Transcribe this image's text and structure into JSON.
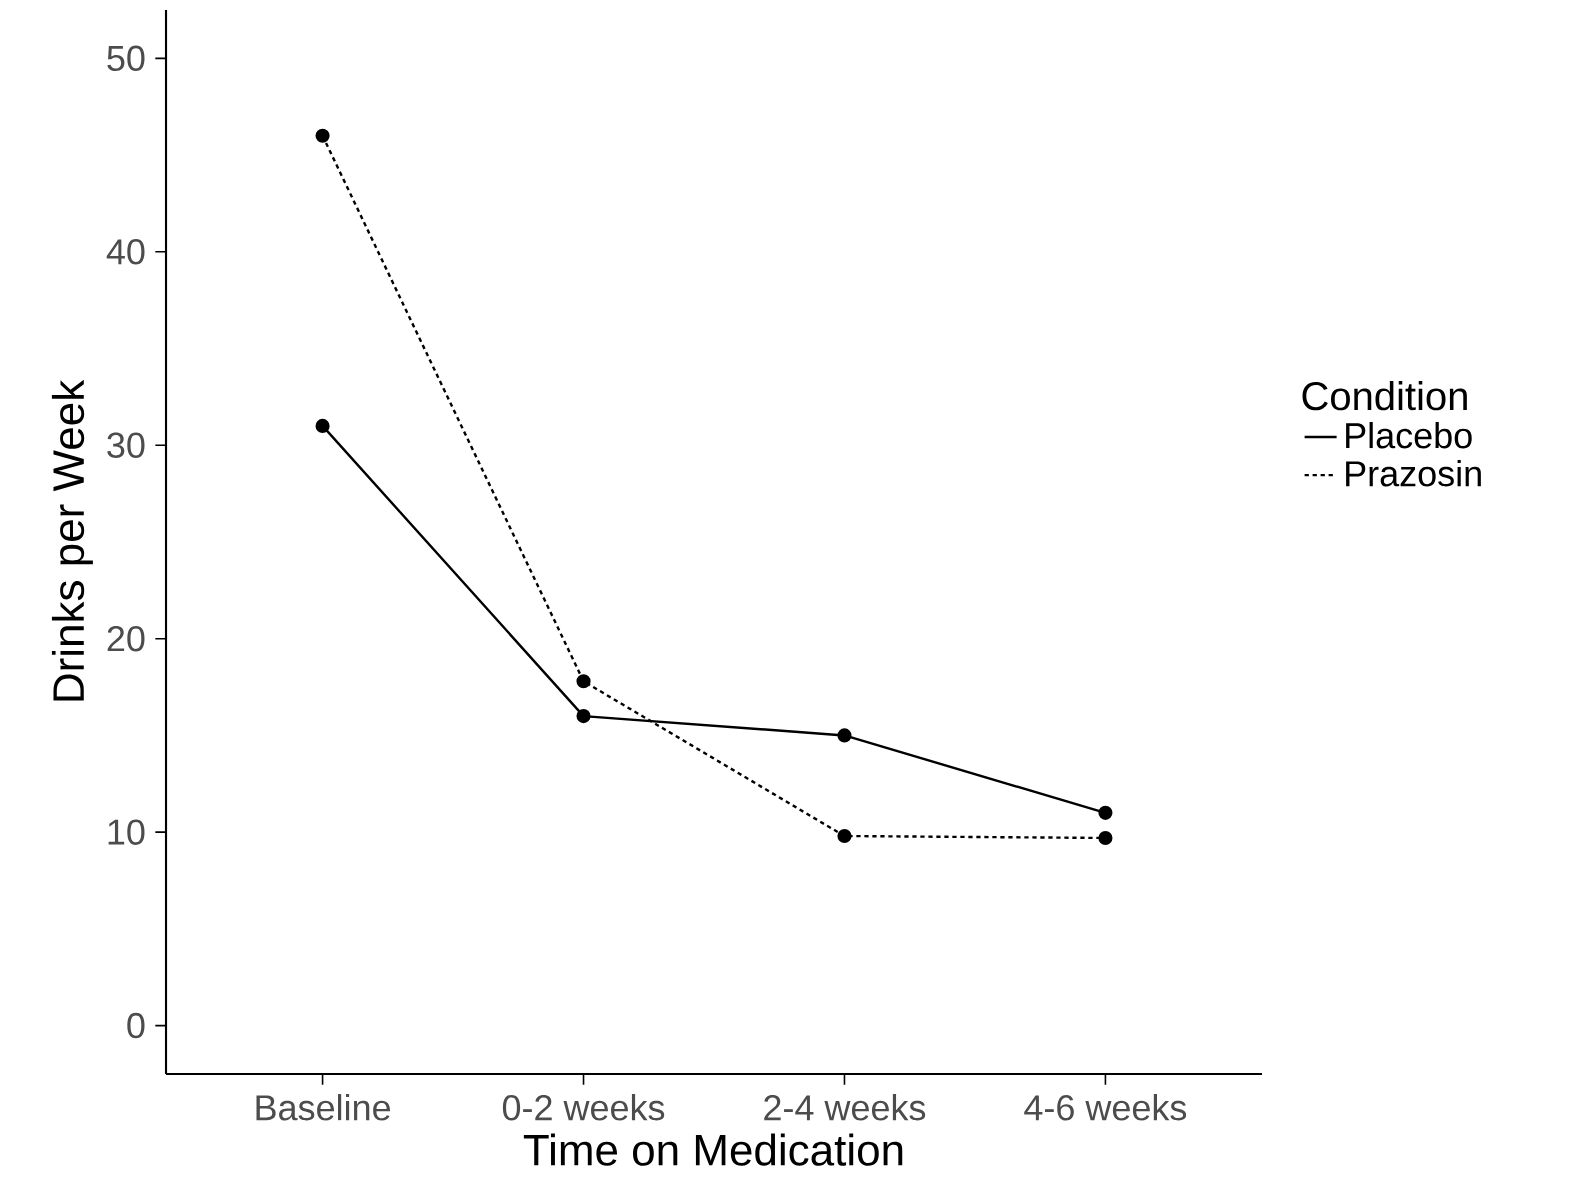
{
  "chart_data": {
    "type": "line",
    "xlabel": "Time on Medication",
    "ylabel": "Drinks per Week",
    "legend_title": "Condition",
    "categories": [
      "Baseline",
      "0-2 weeks",
      "2-4 weeks",
      "4-6 weeks"
    ],
    "series": [
      {
        "name": "Placebo",
        "color": "#000000",
        "line_style": "solid",
        "values": [
          31,
          16,
          15,
          11
        ]
      },
      {
        "name": "Prazosin",
        "color": "#000000",
        "line_style": "dotted",
        "values": [
          46,
          17.8,
          9.8,
          9.7
        ]
      }
    ],
    "ylim": [
      -2.5,
      52.5
    ],
    "yticks": [
      0,
      10,
      20,
      30,
      40,
      50
    ],
    "marker": "circle",
    "legend": "right",
    "grid": false
  }
}
